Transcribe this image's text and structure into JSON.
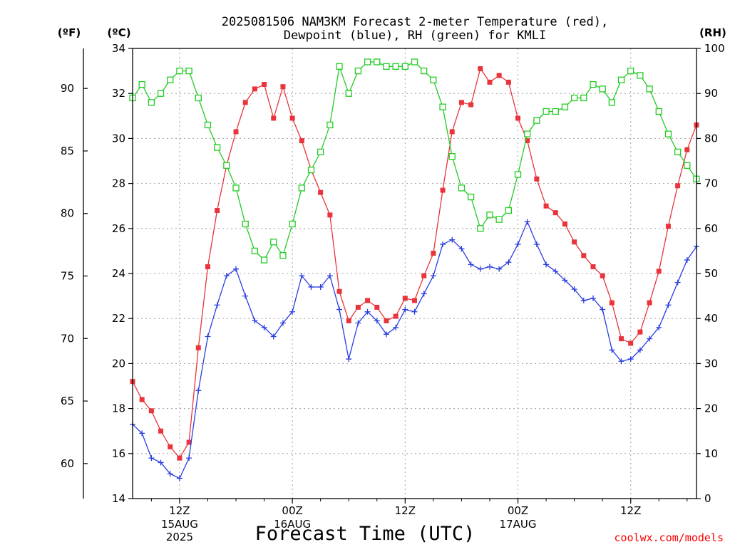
{
  "chart_data": {
    "type": "line",
    "title": "2025081506 NAM3KM Forecast 2-meter Temperature (red),",
    "subtitle": "Dewpoint (blue), RH (green) for KMLI",
    "xlabel": "Forecast Time (UTC)",
    "units": {
      "fahrenheit": "(ºF)",
      "celsius": "(ºC)",
      "rh": "(RH)"
    },
    "credit": "coolwx.com/models",
    "x_range_hours": [
      7,
      67
    ],
    "x_ticks": [
      {
        "hour": 12,
        "label": "12Z",
        "date": "15AUG",
        "year": "2025"
      },
      {
        "hour": 24,
        "label": "00Z",
        "date": "16AUG",
        "year": ""
      },
      {
        "hour": 36,
        "label": "12Z",
        "date": "",
        "year": ""
      },
      {
        "hour": 48,
        "label": "00Z",
        "date": "17AUG",
        "year": ""
      },
      {
        "hour": 60,
        "label": "12Z",
        "date": "",
        "year": ""
      }
    ],
    "y_left_celsius": {
      "range": [
        14,
        34
      ],
      "ticks": [
        "14",
        "16",
        "18",
        "20",
        "22",
        "24",
        "26",
        "28",
        "30",
        "32",
        "34"
      ]
    },
    "y_left_fahrenheit": {
      "ticks": [
        "60",
        "65",
        "70",
        "75",
        "80",
        "85",
        "90"
      ]
    },
    "y_right_rh": {
      "range": [
        0,
        100
      ],
      "ticks": [
        "0",
        "10",
        "20",
        "30",
        "40",
        "50",
        "60",
        "70",
        "80",
        "90",
        "100"
      ]
    },
    "grid": true,
    "series": [
      {
        "key": "temperature",
        "color": "#e8343a",
        "marker": "filled-square",
        "axis": "celsius",
        "x": [
          7,
          8,
          9,
          10,
          11,
          12,
          13,
          14,
          15,
          16,
          17,
          18,
          19,
          20,
          21,
          22,
          23,
          24,
          25,
          26,
          27,
          28,
          29,
          30,
          31,
          32,
          33,
          34,
          35,
          36,
          37,
          38,
          39,
          40,
          41,
          42,
          43,
          44,
          45,
          46,
          47,
          48,
          49,
          50,
          51,
          52,
          53,
          54,
          55,
          56,
          57,
          58,
          59,
          60,
          61,
          62,
          63,
          64,
          65,
          66,
          67
        ],
        "values": [
          19.2,
          18.4,
          17.9,
          17.0,
          16.3,
          15.8,
          16.5,
          20.7,
          24.3,
          26.8,
          28.8,
          30.3,
          31.6,
          32.2,
          32.4,
          30.9,
          32.3,
          30.9,
          29.9,
          28.6,
          27.6,
          26.6,
          23.2,
          21.9,
          22.5,
          22.8,
          22.5,
          21.9,
          22.1,
          22.9,
          22.8,
          23.9,
          24.9,
          27.7,
          30.3,
          31.6,
          31.5,
          33.1,
          32.5,
          32.8,
          32.5,
          30.9,
          29.9,
          28.2,
          27.0,
          26.7,
          26.2,
          25.4,
          24.8,
          24.3,
          23.9,
          22.7,
          21.1,
          20.9,
          21.4,
          22.7,
          24.1,
          26.1,
          27.9,
          29.5,
          30.6
        ]
      },
      {
        "key": "dewpoint",
        "color": "#2a3ee0",
        "marker": "plus",
        "axis": "celsius",
        "x": [
          7,
          8,
          9,
          10,
          11,
          12,
          13,
          14,
          15,
          16,
          17,
          18,
          19,
          20,
          21,
          22,
          23,
          24,
          25,
          26,
          27,
          28,
          29,
          30,
          31,
          32,
          33,
          34,
          35,
          36,
          37,
          38,
          39,
          40,
          41,
          42,
          43,
          44,
          45,
          46,
          47,
          48,
          49,
          50,
          51,
          52,
          53,
          54,
          55,
          56,
          57,
          58,
          59,
          60,
          61,
          62,
          63,
          64,
          65,
          66,
          67
        ],
        "values": [
          17.3,
          16.9,
          15.8,
          15.6,
          15.1,
          14.9,
          15.8,
          18.8,
          21.2,
          22.6,
          23.9,
          24.2,
          23.0,
          21.9,
          21.6,
          21.2,
          21.8,
          22.3,
          23.9,
          23.4,
          23.4,
          23.9,
          22.4,
          20.2,
          21.8,
          22.3,
          21.9,
          21.3,
          21.6,
          22.4,
          22.3,
          23.1,
          23.9,
          25.3,
          25.5,
          25.1,
          24.4,
          24.2,
          24.3,
          24.2,
          24.5,
          25.3,
          26.3,
          25.3,
          24.4,
          24.1,
          23.7,
          23.3,
          22.8,
          22.9,
          22.4,
          20.6,
          20.1,
          20.2,
          20.6,
          21.1,
          21.6,
          22.6,
          23.6,
          24.6,
          25.2
        ]
      },
      {
        "key": "rh",
        "color": "#22cc22",
        "marker": "open-square",
        "axis": "rh",
        "x": [
          7,
          8,
          9,
          10,
          11,
          12,
          13,
          14,
          15,
          16,
          17,
          18,
          19,
          20,
          21,
          22,
          23,
          24,
          25,
          26,
          27,
          28,
          29,
          30,
          31,
          32,
          33,
          34,
          35,
          36,
          37,
          38,
          39,
          40,
          41,
          42,
          43,
          44,
          45,
          46,
          47,
          48,
          49,
          50,
          51,
          52,
          53,
          54,
          55,
          56,
          57,
          58,
          59,
          60,
          61,
          62,
          63,
          64,
          65,
          66,
          67
        ],
        "values": [
          89,
          92,
          88,
          90,
          93,
          95,
          95,
          89,
          83,
          78,
          74,
          69,
          61,
          55,
          53,
          57,
          54,
          61,
          69,
          73,
          77,
          83,
          96,
          90,
          95,
          97,
          97,
          96,
          96,
          96,
          97,
          95,
          93,
          87,
          76,
          69,
          67,
          60,
          63,
          62,
          64,
          72,
          81,
          84,
          86,
          86,
          87,
          89,
          89,
          92,
          91,
          88,
          93,
          95,
          94,
          91,
          86,
          81,
          77,
          74,
          71
        ]
      }
    ]
  }
}
